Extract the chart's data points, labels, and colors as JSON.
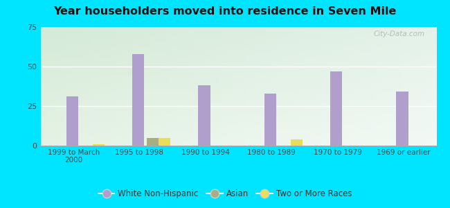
{
  "title": "Year householders moved into residence in Seven Mile",
  "categories": [
    "1999 to March\n2000",
    "1995 to 1998",
    "1990 to 1994",
    "1980 to 1989",
    "1970 to 1979",
    "1969 or earlier"
  ],
  "series": {
    "White Non-Hispanic": [
      31,
      58,
      38,
      33,
      47,
      34
    ],
    "Asian": [
      0,
      5,
      0,
      0,
      0,
      0
    ],
    "Two or More Races": [
      1,
      5,
      0,
      4,
      0,
      0
    ]
  },
  "colors": {
    "White Non-Hispanic": "#b09fcc",
    "Asian": "#a8ad84",
    "Two or More Races": "#e8de5a"
  },
  "ylim": [
    0,
    75
  ],
  "yticks": [
    0,
    25,
    50,
    75
  ],
  "bar_width": 0.18,
  "background_outer": "#00e5ff",
  "watermark": "City-Data.com"
}
